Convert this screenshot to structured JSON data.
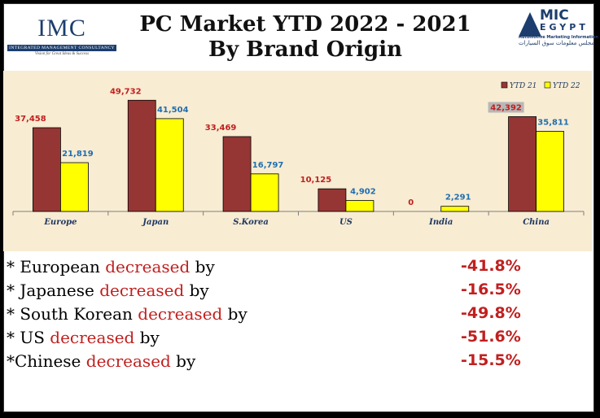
{
  "header": {
    "title_line1": "PC Market YTD 2022 - 2021",
    "title_line2": "By Brand Origin",
    "imc_logo": "IMC",
    "imc_name": "INTEGRATED MANAGEMENT CONSULTANCY",
    "imc_tagline": "Vision for Great Ideas & Success",
    "amic_logo_top": "MIC",
    "amic_logo_bottom": "EGYPT",
    "amic_subtitle": "Automotive Marketing Information Council",
    "amic_arabic": "مجلس معلومات سوق السيارات"
  },
  "colors": {
    "ytd21": "#963634",
    "ytd22": "#ffff00",
    "label21": "#c0201f",
    "label22": "#1f6fb0",
    "chart_bg": "#f8ecd2"
  },
  "chart_data": {
    "type": "bar",
    "categories": [
      "Europe",
      "Japan",
      "S.Korea",
      "US",
      "India",
      "China"
    ],
    "series": [
      {
        "name": "YTD 21",
        "values": [
          37458,
          49732,
          33469,
          10125,
          0,
          42392
        ]
      },
      {
        "name": "YTD 22",
        "values": [
          21819,
          41504,
          16797,
          4902,
          2291,
          35811
        ]
      }
    ],
    "value_labels": {
      "YTD 21": [
        "37,458",
        "49,732",
        "33,469",
        "10,125",
        "0",
        "42,392"
      ],
      "YTD 22": [
        "21,819",
        "41,504",
        "16,797",
        "4,902",
        "2,291",
        "35,811"
      ]
    },
    "title": "",
    "xlabel": "",
    "ylabel": "",
    "ylim": [
      0,
      55000
    ],
    "legend": "top-right",
    "grid": false
  },
  "bullets": [
    {
      "prefix": "* European ",
      "word": "decreased",
      "suffix": " by",
      "value": "-41.8%"
    },
    {
      "prefix": "* Japanese ",
      "word": "decreased",
      "suffix": " by",
      "value": "-16.5%"
    },
    {
      "prefix": "* South Korean ",
      "word": "decreased",
      "suffix": " by",
      "value": "-49.8%"
    },
    {
      "prefix": "* US ",
      "word": "decreased",
      "suffix": " by",
      "value": "-51.6%"
    },
    {
      "prefix": "*Chinese ",
      "word": "decreased",
      "suffix": " by",
      "value": "-15.5%"
    }
  ]
}
